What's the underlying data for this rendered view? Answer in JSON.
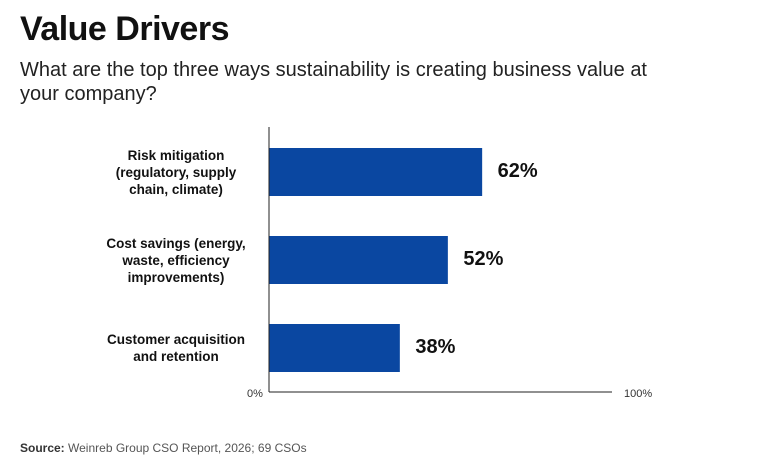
{
  "title": "Value Drivers",
  "subtitle": "What are the top three ways sustainability is creating business value at your company?",
  "source": {
    "prefix": "Source:",
    "text": " Weinreb Group CSO Report, 2026; 69 CSOs"
  },
  "colors": {
    "bar": "#0a47a1",
    "axis": "#222222"
  },
  "chart_data": {
    "type": "bar",
    "orientation": "horizontal",
    "categories": [
      "Risk mitigation (regulatory, supply chain, climate)",
      "Cost savings (energy, waste, efficiency improvements)",
      "Customer acquisition and retention"
    ],
    "category_lines": [
      [
        "Risk mitigation",
        "(regulatory, supply",
        "chain, climate)"
      ],
      [
        "Cost savings (energy,",
        "waste, efficiency",
        "improvements)"
      ],
      [
        "Customer acquisition",
        "and retention"
      ]
    ],
    "values": [
      62,
      52,
      38
    ],
    "value_labels": [
      "62%",
      "52%",
      "38%"
    ],
    "xlim": [
      0,
      100
    ],
    "x_tick_labels": [
      "0%",
      "100%"
    ],
    "grid": false,
    "legend": "none"
  }
}
